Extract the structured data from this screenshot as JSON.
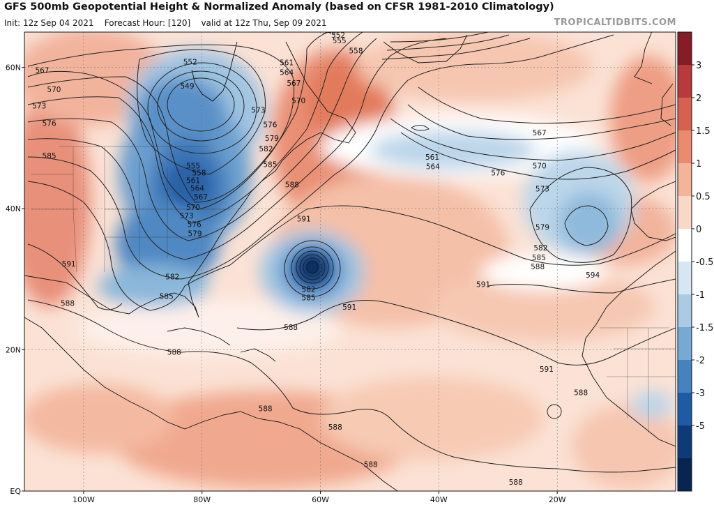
{
  "header": {
    "title": "GFS 500mb Geopotential Height & Normalized Anomaly (based on CFSR 1981-2010 Climatology)",
    "init": "Init: 12z Sep 04 2021",
    "forecast": "Forecast Hour: [120]",
    "valid": "valid at 12z Thu, Sep 09 2021",
    "brand": "TROPICALTIDBITS.COM"
  },
  "axes": {
    "lat_labels": [
      {
        "text": "60N",
        "lat": 60
      },
      {
        "text": "40N",
        "lat": 40
      },
      {
        "text": "20N",
        "lat": 20
      },
      {
        "text": "EQ",
        "lat": 0
      }
    ],
    "lon_labels": [
      {
        "text": "100W",
        "lon": -100
      },
      {
        "text": "80W",
        "lon": -80
      },
      {
        "text": "60W",
        "lon": -60
      },
      {
        "text": "40W",
        "lon": -40
      },
      {
        "text": "20W",
        "lon": -20
      }
    ]
  },
  "colorbar": {
    "labels": [
      "3",
      "2",
      "1.5",
      "1",
      "0.5",
      "0",
      "-0.5",
      "-1",
      "-1.5",
      "-2",
      "-3",
      "-5"
    ],
    "colors": [
      "#861c26",
      "#b83a3c",
      "#d5614e",
      "#e88b6e",
      "#f3b498",
      "#fad8c7",
      "#ffffff",
      "#d6e6f2",
      "#aacbe3",
      "#77aad3",
      "#4682bf",
      "#1f5aa4",
      "#0e3a78",
      "#082552"
    ]
  },
  "contours": {
    "unit": "dam",
    "labels": [
      {
        "text": "549",
        "lon": -58.5,
        "lat": 65
      },
      {
        "text": "552",
        "lon": -57,
        "lat": 64.5
      },
      {
        "text": "555",
        "lon": -56.8,
        "lat": 63.7
      },
      {
        "text": "558",
        "lon": -54,
        "lat": 62.3
      },
      {
        "text": "567",
        "lon": -107,
        "lat": 59.5
      },
      {
        "text": "570",
        "lon": -105,
        "lat": 56.8
      },
      {
        "text": "573",
        "lon": -107.5,
        "lat": 54.5
      },
      {
        "text": "576",
        "lon": -105.8,
        "lat": 52
      },
      {
        "text": "585",
        "lon": -105.8,
        "lat": 47.4
      },
      {
        "text": "591",
        "lon": -102.5,
        "lat": 32.1
      },
      {
        "text": "552",
        "lon": -82,
        "lat": 60.7
      },
      {
        "text": "549",
        "lon": -82.5,
        "lat": 57.3
      },
      {
        "text": "555",
        "lon": -81.5,
        "lat": 46
      },
      {
        "text": "558",
        "lon": -80.5,
        "lat": 45
      },
      {
        "text": "561",
        "lon": -81.5,
        "lat": 43.9
      },
      {
        "text": "564",
        "lon": -80.8,
        "lat": 42.8
      },
      {
        "text": "567",
        "lon": -80.2,
        "lat": 41.6
      },
      {
        "text": "570",
        "lon": -81.5,
        "lat": 40.1
      },
      {
        "text": "573",
        "lon": -82.6,
        "lat": 38.9
      },
      {
        "text": "576",
        "lon": -81.3,
        "lat": 37.7
      },
      {
        "text": "579",
        "lon": -81.2,
        "lat": 36.4
      },
      {
        "text": "582",
        "lon": -85,
        "lat": 30.3
      },
      {
        "text": "585",
        "lon": -86,
        "lat": 27.5
      },
      {
        "text": "588",
        "lon": -102.7,
        "lat": 26.5
      },
      {
        "text": "588",
        "lon": -84.7,
        "lat": 19.6
      },
      {
        "text": "561",
        "lon": -65.7,
        "lat": 60.6
      },
      {
        "text": "564",
        "lon": -65.7,
        "lat": 59.2
      },
      {
        "text": "567",
        "lon": -64.5,
        "lat": 57.7
      },
      {
        "text": "570",
        "lon": -63.7,
        "lat": 55.2
      },
      {
        "text": "573",
        "lon": -70.5,
        "lat": 53.9
      },
      {
        "text": "576",
        "lon": -68.5,
        "lat": 51.8
      },
      {
        "text": "579",
        "lon": -68.2,
        "lat": 49.9
      },
      {
        "text": "582",
        "lon": -69.2,
        "lat": 48.4
      },
      {
        "text": "585",
        "lon": -68.5,
        "lat": 46.2
      },
      {
        "text": "588",
        "lon": -64.8,
        "lat": 43.3
      },
      {
        "text": "591",
        "lon": -62.8,
        "lat": 38.5
      },
      {
        "text": "582",
        "lon": -62,
        "lat": 28.5
      },
      {
        "text": "585",
        "lon": -62,
        "lat": 27.3
      },
      {
        "text": "588",
        "lon": -65,
        "lat": 23.1
      },
      {
        "text": "591",
        "lon": -55.1,
        "lat": 26
      },
      {
        "text": "561",
        "lon": -41.1,
        "lat": 47.2
      },
      {
        "text": "564",
        "lon": -41,
        "lat": 45.9
      },
      {
        "text": "567",
        "lon": -23,
        "lat": 50.7
      },
      {
        "text": "570",
        "lon": -23,
        "lat": 46
      },
      {
        "text": "576",
        "lon": -30,
        "lat": 45
      },
      {
        "text": "573",
        "lon": -22.5,
        "lat": 42.7
      },
      {
        "text": "579",
        "lon": -22.5,
        "lat": 37.3
      },
      {
        "text": "582",
        "lon": -22.8,
        "lat": 34.4
      },
      {
        "text": "585",
        "lon": -23.1,
        "lat": 33
      },
      {
        "text": "588",
        "lon": -23.3,
        "lat": 31.7
      },
      {
        "text": "591",
        "lon": -32.5,
        "lat": 29.2
      },
      {
        "text": "594",
        "lon": -14,
        "lat": 30.5
      },
      {
        "text": "591",
        "lon": -21.8,
        "lat": 17.2
      },
      {
        "text": "588",
        "lon": -69.3,
        "lat": 11.6
      },
      {
        "text": "588",
        "lon": -57.5,
        "lat": 9
      },
      {
        "text": "588",
        "lon": -51.5,
        "lat": 3.7
      },
      {
        "text": "588",
        "lon": -16,
        "lat": 13.9
      },
      {
        "text": "588",
        "lon": -27,
        "lat": 1.2
      }
    ]
  }
}
